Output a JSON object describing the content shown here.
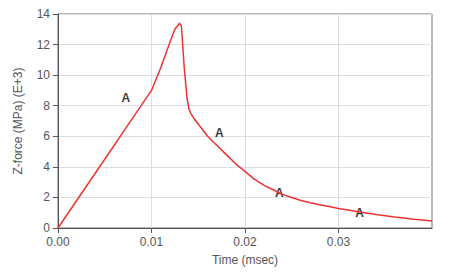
{
  "chart_data": {
    "type": "line",
    "xlabel": "Time (msec)",
    "ylabel": "Z-force (MPa) (E+3)",
    "x": [
      0.0,
      0.001,
      0.002,
      0.003,
      0.004,
      0.005,
      0.006,
      0.007,
      0.008,
      0.009,
      0.01,
      0.011,
      0.012,
      0.0125,
      0.013,
      0.0132,
      0.0135,
      0.0138,
      0.014,
      0.0142,
      0.0145,
      0.015,
      0.016,
      0.017,
      0.018,
      0.019,
      0.02,
      0.021,
      0.022,
      0.023,
      0.024,
      0.025,
      0.026,
      0.027,
      0.028,
      0.029,
      0.03,
      0.031,
      0.032,
      0.033,
      0.034,
      0.035,
      0.036,
      0.037,
      0.038,
      0.039,
      0.04
    ],
    "values": [
      0.0,
      0.9,
      1.8,
      2.7,
      3.6,
      4.5,
      5.4,
      6.3,
      7.2,
      8.1,
      9.0,
      10.5,
      12.2,
      13.0,
      13.4,
      13.2,
      10.5,
      8.5,
      7.8,
      7.5,
      7.2,
      6.8,
      6.0,
      5.4,
      4.8,
      4.2,
      3.7,
      3.2,
      2.8,
      2.5,
      2.2,
      2.0,
      1.8,
      1.65,
      1.52,
      1.4,
      1.28,
      1.18,
      1.08,
      0.98,
      0.88,
      0.8,
      0.72,
      0.65,
      0.58,
      0.52,
      0.46
    ],
    "color": "#ee3333",
    "xlim": [
      0,
      0.04
    ],
    "ylim": [
      0,
      14
    ],
    "xticks": [
      {
        "value": 0,
        "label": "0.00"
      },
      0.01,
      0.02,
      0.03
    ],
    "yticks": [
      0,
      2,
      4,
      6,
      8,
      10,
      12,
      14
    ],
    "grid": true,
    "annotations": [
      {
        "text": "A",
        "x": 0.0068,
        "y": 8.5
      },
      {
        "text": "A",
        "x": 0.0168,
        "y": 6.2
      },
      {
        "text": "A",
        "x": 0.0232,
        "y": 2.3
      },
      {
        "text": "A",
        "x": 0.0318,
        "y": 1.0
      }
    ]
  }
}
